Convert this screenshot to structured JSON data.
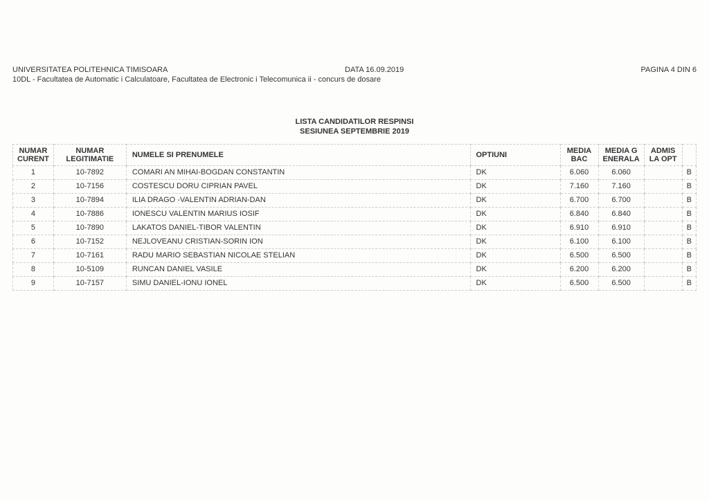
{
  "header": {
    "university": "UNIVERSITATEA POLITEHNICA TIMISOARA",
    "date_label": "DATA 16.09.2019",
    "page_label": "PAGINA 4 DIN 6",
    "faculty_line": "10DL - Facultatea de Automatic    i Calculatoare, Facultatea de Electronic    i Telecomunica ii - concurs de dosare"
  },
  "titles": {
    "line1": "LISTA CANDIDATILOR RESPINSI",
    "line2": "SESIUNEA SEPTEMBRIE 2019"
  },
  "table": {
    "columns": {
      "numar_curent": "NUMAR CURENT",
      "numar_legit": "NUMAR LEGITIMATIE",
      "nume": "NUMELE SI PRENUMELE",
      "optiuni": "OPTIUNI",
      "media_bac": "MEDIA BAC",
      "media_gen": "MEDIA G ENERALA",
      "admis": "ADMIS LA OPT",
      "last": ""
    },
    "rows": [
      {
        "n": "1",
        "leg": "10-7892",
        "name": "COMARI  AN MIHAI-BOGDAN CONSTANTIN",
        "opt": "DK",
        "bac": "6.060",
        "gen": "6.060",
        "admis": "",
        "last": "B"
      },
      {
        "n": "2",
        "leg": "10-7156",
        "name": "COSTESCU DORU CIPRIAN PAVEL",
        "opt": "DK",
        "bac": "7.160",
        "gen": "7.160",
        "admis": "",
        "last": "B"
      },
      {
        "n": "3",
        "leg": "10-7894",
        "name": "ILIA DRAGO  -VALENTIN ADRIAN-DAN",
        "opt": "DK",
        "bac": "6.700",
        "gen": "6.700",
        "admis": "",
        "last": "B"
      },
      {
        "n": "4",
        "leg": "10-7886",
        "name": "IONESCU VALENTIN MARIUS IOSIF",
        "opt": "DK",
        "bac": "6.840",
        "gen": "6.840",
        "admis": "",
        "last": "B"
      },
      {
        "n": "5",
        "leg": "10-7890",
        "name": "LAKATOS DANIEL-TIBOR VALENTIN",
        "opt": "DK",
        "bac": "6.910",
        "gen": "6.910",
        "admis": "",
        "last": "B"
      },
      {
        "n": "6",
        "leg": "10-7152",
        "name": "NEJLOVEANU CRISTIAN-SORIN ION",
        "opt": "DK",
        "bac": "6.100",
        "gen": "6.100",
        "admis": "",
        "last": "B"
      },
      {
        "n": "7",
        "leg": "10-7161",
        "name": "RADU MARIO SEBASTIAN NICOLAE STELIAN",
        "opt": "DK",
        "bac": "6.500",
        "gen": "6.500",
        "admis": "",
        "last": "B"
      },
      {
        "n": "8",
        "leg": "10-5109",
        "name": "RUNCAN DANIEL VASILE",
        "opt": "DK",
        "bac": "6.200",
        "gen": "6.200",
        "admis": "",
        "last": "B"
      },
      {
        "n": "9",
        "leg": "10-7157",
        "name": "SIMU DANIEL-IONU   IONEL",
        "opt": "DK",
        "bac": "6.500",
        "gen": "6.500",
        "admis": "",
        "last": "B"
      }
    ]
  },
  "style": {
    "background_color": "#fdfdfc",
    "text_color": "#333333",
    "border_color": "#cccccc",
    "font_size_body": 11,
    "font_size_title": 11
  }
}
